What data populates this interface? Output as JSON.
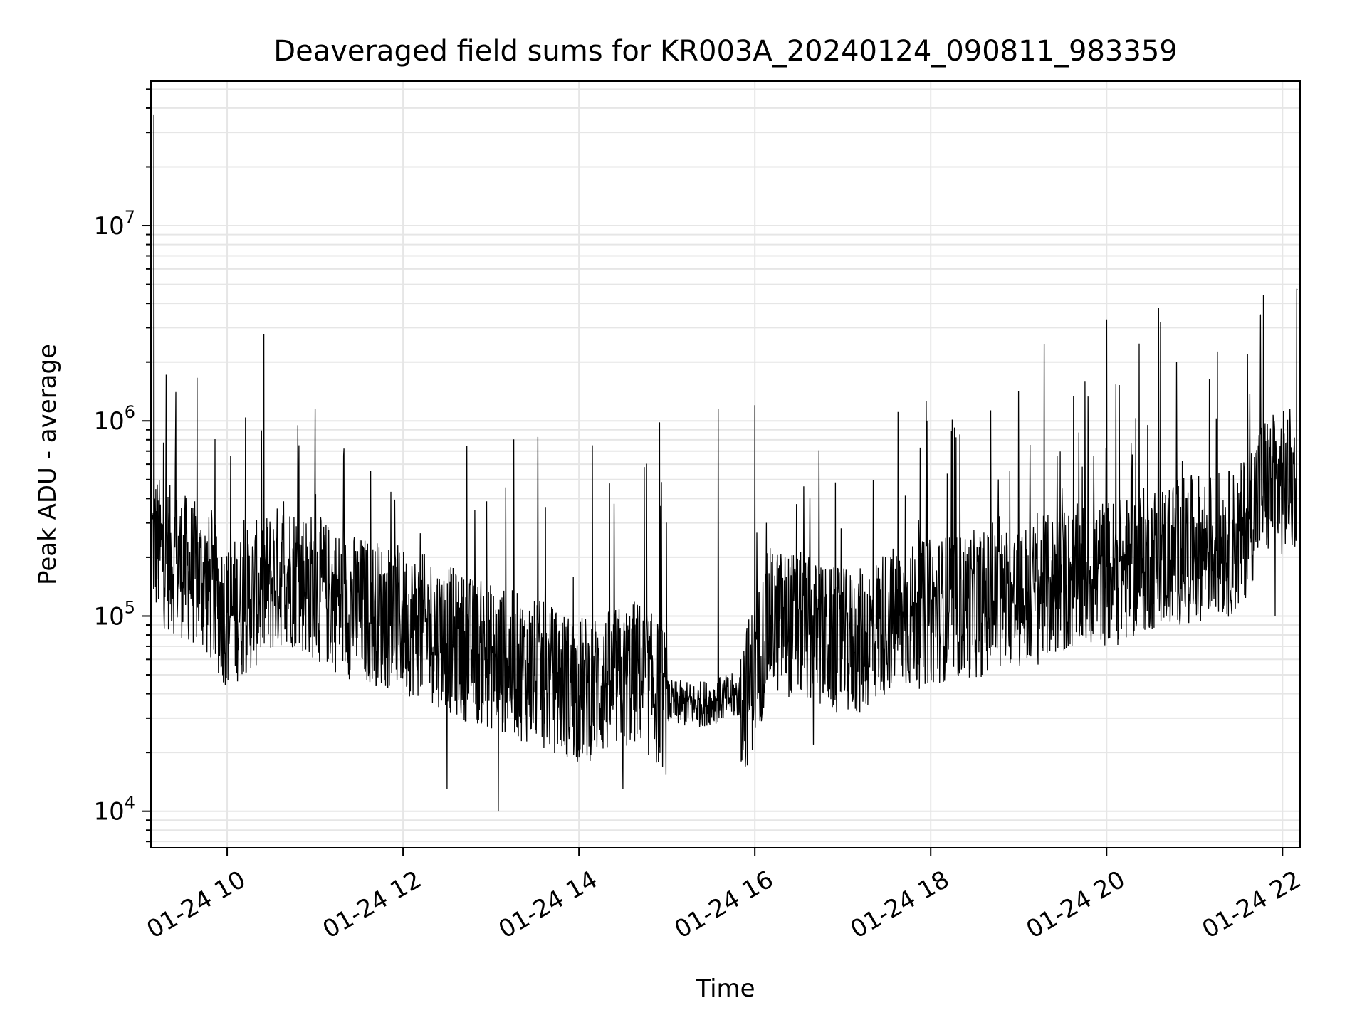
{
  "chart_data": {
    "type": "line",
    "title": "Deaveraged field sums for KR003A_20240124_090811_983359",
    "xlabel": "Time",
    "ylabel": "Peak ADU - average",
    "x_axis": {
      "kind": "datetime",
      "range": [
        "2024-01-24T09:08:00",
        "2024-01-24T22:12:00"
      ],
      "ticks": [
        {
          "value": "2024-01-24T10:00:00",
          "label": "01-24 10"
        },
        {
          "value": "2024-01-24T12:00:00",
          "label": "01-24 12"
        },
        {
          "value": "2024-01-24T14:00:00",
          "label": "01-24 14"
        },
        {
          "value": "2024-01-24T16:00:00",
          "label": "01-24 16"
        },
        {
          "value": "2024-01-24T18:00:00",
          "label": "01-24 18"
        },
        {
          "value": "2024-01-24T20:00:00",
          "label": "01-24 20"
        },
        {
          "value": "2024-01-24T22:00:00",
          "label": "01-24 22"
        }
      ]
    },
    "y_axis": {
      "scale": "log",
      "range": [
        6500,
        55000000
      ],
      "ticks": [
        {
          "value": 10000,
          "base": "10",
          "exp": "4"
        },
        {
          "value": 100000,
          "base": "10",
          "exp": "5"
        },
        {
          "value": 1000000,
          "base": "10",
          "exp": "6"
        },
        {
          "value": 10000000,
          "base": "10",
          "exp": "7"
        }
      ]
    },
    "grid": {
      "major": true,
      "minor_y": true,
      "color": "#e6e6e6"
    },
    "line_color": "#000000",
    "series": [
      {
        "x": [
          "2024-01-24T09:09:00",
          "2024-01-24T09:15:00",
          "2024-01-24T09:25:00",
          "2024-01-24T09:35:00",
          "2024-01-24T09:45:00",
          "2024-01-24T10:00:00",
          "2024-01-24T10:20:00",
          "2024-01-24T10:40:00",
          "2024-01-24T11:00:00",
          "2024-01-24T11:20:00",
          "2024-01-24T11:40:00",
          "2024-01-24T12:00:00",
          "2024-01-24T12:20:00",
          "2024-01-24T12:40:00",
          "2024-01-24T13:00:00",
          "2024-01-24T13:20:00",
          "2024-01-24T13:40:00",
          "2024-01-24T14:00:00",
          "2024-01-24T14:20:00",
          "2024-01-24T14:40:00",
          "2024-01-24T15:00:00",
          "2024-01-24T15:20:00",
          "2024-01-24T15:40:00",
          "2024-01-24T15:55:00",
          "2024-01-24T16:10:00",
          "2024-01-24T16:30:00",
          "2024-01-24T16:50:00",
          "2024-01-24T17:10:00",
          "2024-01-24T17:30:00",
          "2024-01-24T17:50:00",
          "2024-01-24T18:10:00",
          "2024-01-24T18:30:00",
          "2024-01-24T18:50:00",
          "2024-01-24T19:10:00",
          "2024-01-24T19:30:00",
          "2024-01-24T19:50:00",
          "2024-01-24T20:10:00",
          "2024-01-24T20:30:00",
          "2024-01-24T20:50:00",
          "2024-01-24T21:10:00",
          "2024-01-24T21:30:00",
          "2024-01-24T21:45:00",
          "2024-01-24T22:00:00",
          "2024-01-24T22:10:00"
        ],
        "y": [
          250000,
          210000,
          190000,
          170000,
          150000,
          100000,
          130000,
          170000,
          140000,
          115000,
          105000,
          95000,
          85000,
          70000,
          62000,
          55000,
          48000,
          42000,
          45000,
          52000,
          36000,
          35000,
          38000,
          40000,
          95000,
          90000,
          75000,
          72000,
          95000,
          100000,
          110000,
          115000,
          120000,
          130000,
          150000,
          165000,
          170000,
          200000,
          215000,
          230000,
          240000,
          450000,
          480000,
          500000
        ]
      }
    ],
    "spikes": [
      {
        "x": "2024-01-24T09:10:00",
        "y": 37000000
      },
      {
        "x": "2024-01-24T09:25:00",
        "y": 1400000
      },
      {
        "x": "2024-01-24T11:00:00",
        "y": 1150000
      },
      {
        "x": "2024-01-24T14:55:00",
        "y": 980000
      },
      {
        "x": "2024-01-24T15:35:00",
        "y": 1150000
      },
      {
        "x": "2024-01-24T16:00:00",
        "y": 1200000
      },
      {
        "x": "2024-01-24T20:28:00",
        "y": 950000
      },
      {
        "x": "2024-01-24T21:45:00",
        "y": 3500000
      },
      {
        "x": "2024-01-24T21:47:00",
        "y": 4400000
      },
      {
        "x": "2024-01-24T22:10:00",
        "y": 4700000
      }
    ],
    "dips": [
      {
        "x": "2024-01-24T12:30:00",
        "y": 13000
      },
      {
        "x": "2024-01-24T13:05:00",
        "y": 10000
      },
      {
        "x": "2024-01-24T14:30:00",
        "y": 13000
      },
      {
        "x": "2024-01-24T16:40:00",
        "y": 22000
      },
      {
        "x": "2024-01-24T21:55:00",
        "y": 100000
      }
    ]
  }
}
